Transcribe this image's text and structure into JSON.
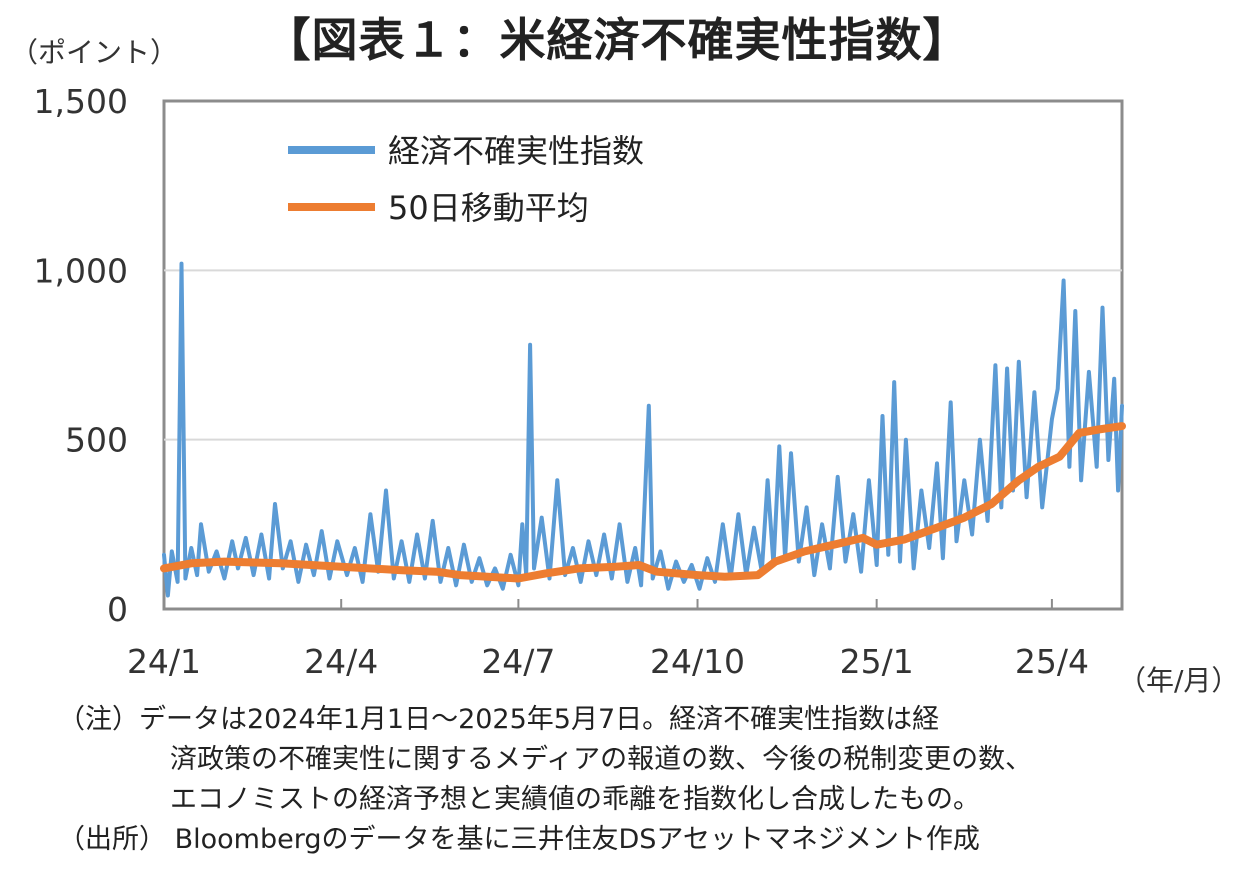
{
  "title": "【図表１：米経済不確実性指数】",
  "chart_data": {
    "type": "line",
    "title": "【図表１：米経済不確実性指数】",
    "ylabel": "（ポイント）",
    "xlabel": "（年/月）",
    "ylim": [
      0,
      1500
    ],
    "yticks": [
      0,
      500,
      1000,
      1500
    ],
    "ytick_labels": [
      "0",
      "500",
      "1,000",
      "1,500"
    ],
    "xlim": [
      "2024-01-01",
      "2025-05-07"
    ],
    "xticks": [
      "2024-01-01",
      "2024-04-01",
      "2024-07-01",
      "2024-10-01",
      "2025-01-01",
      "2025-04-01"
    ],
    "xtick_labels": [
      "24/1",
      "24/4",
      "24/7",
      "24/10",
      "25/1",
      "25/4"
    ],
    "grid": true,
    "legend_position": "top-left",
    "series": [
      {
        "name": "経済不確実性指数",
        "color": "#5b9bd5",
        "points": [
          [
            "2024-01-01",
            160
          ],
          [
            "2024-01-03",
            40
          ],
          [
            "2024-01-05",
            170
          ],
          [
            "2024-01-08",
            80
          ],
          [
            "2024-01-10",
            1020
          ],
          [
            "2024-01-12",
            90
          ],
          [
            "2024-01-15",
            180
          ],
          [
            "2024-01-18",
            100
          ],
          [
            "2024-01-20",
            250
          ],
          [
            "2024-01-24",
            110
          ],
          [
            "2024-01-28",
            170
          ],
          [
            "2024-02-01",
            90
          ],
          [
            "2024-02-05",
            200
          ],
          [
            "2024-02-08",
            120
          ],
          [
            "2024-02-12",
            210
          ],
          [
            "2024-02-16",
            100
          ],
          [
            "2024-02-20",
            220
          ],
          [
            "2024-02-24",
            90
          ],
          [
            "2024-02-27",
            310
          ],
          [
            "2024-03-02",
            120
          ],
          [
            "2024-03-06",
            200
          ],
          [
            "2024-03-10",
            80
          ],
          [
            "2024-03-14",
            190
          ],
          [
            "2024-03-18",
            100
          ],
          [
            "2024-03-22",
            230
          ],
          [
            "2024-03-26",
            90
          ],
          [
            "2024-03-30",
            200
          ],
          [
            "2024-04-04",
            100
          ],
          [
            "2024-04-08",
            180
          ],
          [
            "2024-04-12",
            80
          ],
          [
            "2024-04-16",
            280
          ],
          [
            "2024-04-20",
            110
          ],
          [
            "2024-04-24",
            350
          ],
          [
            "2024-04-28",
            90
          ],
          [
            "2024-05-02",
            200
          ],
          [
            "2024-05-06",
            80
          ],
          [
            "2024-05-10",
            220
          ],
          [
            "2024-05-14",
            90
          ],
          [
            "2024-05-18",
            260
          ],
          [
            "2024-05-22",
            80
          ],
          [
            "2024-05-26",
            180
          ],
          [
            "2024-05-30",
            70
          ],
          [
            "2024-06-03",
            190
          ],
          [
            "2024-06-07",
            80
          ],
          [
            "2024-06-11",
            150
          ],
          [
            "2024-06-15",
            70
          ],
          [
            "2024-06-19",
            120
          ],
          [
            "2024-06-23",
            60
          ],
          [
            "2024-06-27",
            160
          ],
          [
            "2024-07-01",
            70
          ],
          [
            "2024-07-03",
            250
          ],
          [
            "2024-07-05",
            100
          ],
          [
            "2024-07-07",
            780
          ],
          [
            "2024-07-09",
            120
          ],
          [
            "2024-07-13",
            270
          ],
          [
            "2024-07-17",
            90
          ],
          [
            "2024-07-21",
            380
          ],
          [
            "2024-07-25",
            100
          ],
          [
            "2024-07-29",
            180
          ],
          [
            "2024-08-02",
            80
          ],
          [
            "2024-08-06",
            200
          ],
          [
            "2024-08-10",
            100
          ],
          [
            "2024-08-14",
            220
          ],
          [
            "2024-08-18",
            90
          ],
          [
            "2024-08-22",
            250
          ],
          [
            "2024-08-26",
            80
          ],
          [
            "2024-08-30",
            180
          ],
          [
            "2024-09-02",
            70
          ],
          [
            "2024-09-06",
            600
          ],
          [
            "2024-09-08",
            90
          ],
          [
            "2024-09-12",
            170
          ],
          [
            "2024-09-16",
            60
          ],
          [
            "2024-09-20",
            140
          ],
          [
            "2024-09-24",
            80
          ],
          [
            "2024-09-28",
            130
          ],
          [
            "2024-10-02",
            60
          ],
          [
            "2024-10-06",
            150
          ],
          [
            "2024-10-10",
            80
          ],
          [
            "2024-10-14",
            250
          ],
          [
            "2024-10-18",
            90
          ],
          [
            "2024-10-22",
            280
          ],
          [
            "2024-10-26",
            100
          ],
          [
            "2024-10-30",
            240
          ],
          [
            "2024-11-03",
            110
          ],
          [
            "2024-11-06",
            380
          ],
          [
            "2024-11-09",
            130
          ],
          [
            "2024-11-12",
            480
          ],
          [
            "2024-11-15",
            150
          ],
          [
            "2024-11-18",
            460
          ],
          [
            "2024-11-22",
            140
          ],
          [
            "2024-11-26",
            300
          ],
          [
            "2024-11-30",
            100
          ],
          [
            "2024-12-04",
            250
          ],
          [
            "2024-12-08",
            120
          ],
          [
            "2024-12-12",
            390
          ],
          [
            "2024-12-16",
            140
          ],
          [
            "2024-12-20",
            280
          ],
          [
            "2024-12-24",
            110
          ],
          [
            "2024-12-28",
            380
          ],
          [
            "2025-01-01",
            130
          ],
          [
            "2025-01-04",
            570
          ],
          [
            "2025-01-07",
            160
          ],
          [
            "2025-01-10",
            670
          ],
          [
            "2025-01-13",
            140
          ],
          [
            "2025-01-16",
            500
          ],
          [
            "2025-01-20",
            120
          ],
          [
            "2025-01-24",
            350
          ],
          [
            "2025-01-28",
            180
          ],
          [
            "2025-02-01",
            430
          ],
          [
            "2025-02-04",
            150
          ],
          [
            "2025-02-08",
            610
          ],
          [
            "2025-02-11",
            200
          ],
          [
            "2025-02-15",
            380
          ],
          [
            "2025-02-19",
            220
          ],
          [
            "2025-02-23",
            500
          ],
          [
            "2025-02-27",
            260
          ],
          [
            "2025-03-03",
            720
          ],
          [
            "2025-03-06",
            300
          ],
          [
            "2025-03-09",
            710
          ],
          [
            "2025-03-12",
            350
          ],
          [
            "2025-03-15",
            730
          ],
          [
            "2025-03-19",
            330
          ],
          [
            "2025-03-23",
            640
          ],
          [
            "2025-03-27",
            300
          ],
          [
            "2025-04-01",
            560
          ],
          [
            "2025-04-04",
            650
          ],
          [
            "2025-04-07",
            970
          ],
          [
            "2025-04-10",
            420
          ],
          [
            "2025-04-13",
            880
          ],
          [
            "2025-04-16",
            380
          ],
          [
            "2025-04-20",
            700
          ],
          [
            "2025-04-24",
            420
          ],
          [
            "2025-04-27",
            890
          ],
          [
            "2025-04-30",
            440
          ],
          [
            "2025-05-03",
            680
          ],
          [
            "2025-05-05",
            350
          ],
          [
            "2025-05-07",
            600
          ]
        ]
      },
      {
        "name": "50日移動平均",
        "color": "#ed7d31",
        "points": [
          [
            "2024-01-01",
            120
          ],
          [
            "2024-01-15",
            135
          ],
          [
            "2024-02-01",
            140
          ],
          [
            "2024-03-01",
            135
          ],
          [
            "2024-04-01",
            125
          ],
          [
            "2024-05-01",
            115
          ],
          [
            "2024-05-20",
            110
          ],
          [
            "2024-06-01",
            100
          ],
          [
            "2024-07-01",
            90
          ],
          [
            "2024-07-15",
            105
          ],
          [
            "2024-08-01",
            120
          ],
          [
            "2024-08-20",
            125
          ],
          [
            "2024-09-01",
            130
          ],
          [
            "2024-09-10",
            110
          ],
          [
            "2024-10-01",
            100
          ],
          [
            "2024-10-15",
            95
          ],
          [
            "2024-11-01",
            100
          ],
          [
            "2024-11-10",
            140
          ],
          [
            "2024-11-25",
            170
          ],
          [
            "2024-12-10",
            190
          ],
          [
            "2024-12-25",
            210
          ],
          [
            "2025-01-01",
            190
          ],
          [
            "2025-01-15",
            205
          ],
          [
            "2025-02-01",
            240
          ],
          [
            "2025-02-15",
            270
          ],
          [
            "2025-03-01",
            310
          ],
          [
            "2025-03-15",
            380
          ],
          [
            "2025-03-25",
            420
          ],
          [
            "2025-04-05",
            450
          ],
          [
            "2025-04-15",
            520
          ],
          [
            "2025-04-25",
            530
          ],
          [
            "2025-05-07",
            540
          ]
        ]
      }
    ]
  },
  "notes": [
    "（注）データは2024年1月1日～2025年5月7日。経済不確実性指数は経",
    "済政策の不確実性に関するメディアの報道の数、今後の税制変更の数、",
    "エコノミストの経済予想と実績値の乖離を指数化し合成したもの。",
    "（出所） Bloombergのデータを基に三井住友DSアセットマネジメント作成"
  ]
}
